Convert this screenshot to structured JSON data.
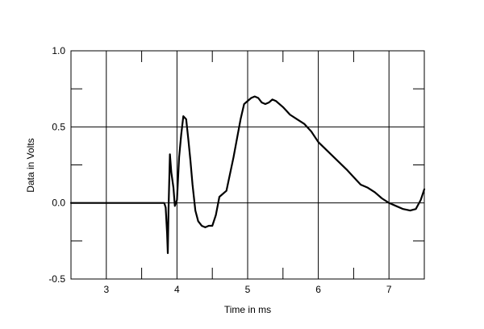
{
  "chart_data": {
    "type": "line",
    "title": "",
    "xlabel": "Time in ms",
    "ylabel": "Data in Volts",
    "xlim": [
      2.5,
      7.5
    ],
    "ylim": [
      -0.5,
      1.0
    ],
    "xticks": [
      "3",
      "4",
      "5",
      "6",
      "7"
    ],
    "xtick_values": [
      3,
      4,
      5,
      6,
      7
    ],
    "yticks": [
      "1.0",
      "0.5",
      "0.0",
      "-0.5"
    ],
    "ytick_values": [
      1.0,
      0.5,
      0.0,
      -0.5
    ],
    "yminor_values": [
      0.75,
      0.25,
      -0.25
    ],
    "grid": true,
    "legend": "none",
    "line_color": "#000000",
    "series": [
      {
        "x": [
          2.5,
          3.0,
          3.5,
          3.82,
          3.84,
          3.86,
          3.87,
          3.88,
          3.9,
          3.92,
          3.95,
          3.97,
          4.0,
          4.03,
          4.06,
          4.09,
          4.13,
          4.16,
          4.19,
          4.22,
          4.26,
          4.3,
          4.35,
          4.4,
          4.45,
          4.5,
          4.55,
          4.6,
          4.7,
          4.8,
          4.9,
          4.95,
          5.0,
          5.05,
          5.1,
          5.15,
          5.2,
          5.25,
          5.3,
          5.35,
          5.4,
          5.5,
          5.6,
          5.7,
          5.8,
          5.9,
          6.0,
          6.2,
          6.4,
          6.5,
          6.6,
          6.7,
          6.8,
          6.9,
          7.0,
          7.1,
          7.2,
          7.3,
          7.38,
          7.45,
          7.5
        ],
        "y": [
          0.0,
          0.0,
          0.0,
          0.0,
          -0.03,
          -0.2,
          -0.33,
          -0.05,
          0.32,
          0.2,
          0.1,
          -0.02,
          0.02,
          0.3,
          0.45,
          0.57,
          0.55,
          0.42,
          0.28,
          0.12,
          -0.05,
          -0.12,
          -0.15,
          -0.16,
          -0.15,
          -0.15,
          -0.08,
          0.04,
          0.08,
          0.3,
          0.55,
          0.65,
          0.67,
          0.69,
          0.7,
          0.69,
          0.66,
          0.65,
          0.66,
          0.68,
          0.67,
          0.63,
          0.58,
          0.55,
          0.52,
          0.47,
          0.4,
          0.31,
          0.22,
          0.17,
          0.12,
          0.1,
          0.07,
          0.03,
          0.0,
          -0.02,
          -0.04,
          -0.05,
          -0.04,
          0.02,
          0.09
        ]
      }
    ]
  }
}
